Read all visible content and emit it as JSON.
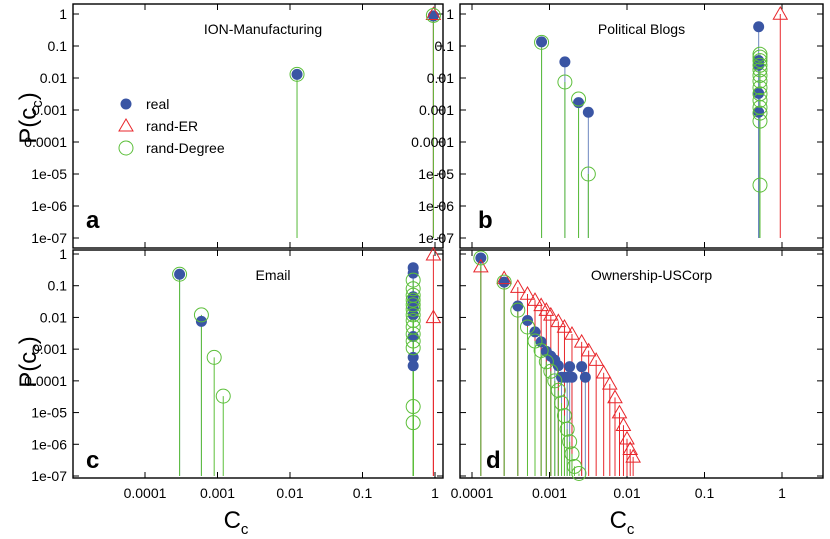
{
  "colors": {
    "real": "#3a55a4",
    "real_stem": "#6d87bf",
    "rand_er": "#e8262b",
    "rand_degree": "#5cbf3a",
    "axis": "#000000"
  },
  "ylabel": {
    "main": "P(c",
    "sub": "c",
    "close": ")"
  },
  "xlabel": {
    "main": "C",
    "sub": "c"
  },
  "legend": {
    "entries": [
      {
        "series": "real",
        "label": "real",
        "marker": "filled-circle"
      },
      {
        "series": "rand-ER",
        "label": "rand-ER",
        "marker": "open-triangle"
      },
      {
        "series": "rand-Degree",
        "label": "rand-Degree",
        "marker": "open-circle"
      }
    ],
    "placement": "panel-a-left"
  },
  "chart_data": [
    {
      "type": "scatter",
      "panel": "a",
      "title": "ION-Manufacturing",
      "xscale": "log",
      "yscale": "log",
      "xlim": [
        0.0001,
        1.2
      ],
      "ylim": [
        1e-07,
        1.4
      ],
      "xticks": [
        "0.0001",
        "0.001",
        "0.01",
        "0.1",
        "1"
      ],
      "yticks": [
        "1e-07",
        "1e-06",
        "1e-05",
        "0.0001",
        "0.001",
        "0.01",
        "0.1",
        "1"
      ],
      "series": [
        {
          "name": "real",
          "points": [
            [
              0.0125,
              0.013
            ],
            [
              0.95,
              0.87
            ]
          ]
        },
        {
          "name": "rand-ER",
          "points": [
            [
              0.95,
              0.98
            ]
          ]
        },
        {
          "name": "rand-Degree",
          "points": [
            [
              0.0125,
              0.013
            ],
            [
              0.95,
              0.9
            ]
          ]
        }
      ]
    },
    {
      "type": "scatter",
      "panel": "b",
      "title": "Political Blogs",
      "xscale": "log",
      "yscale": "log",
      "xlim": [
        0.0001,
        1.2
      ],
      "ylim": [
        1e-07,
        1.4
      ],
      "xticks": [
        "0.0001",
        "0.001",
        "0.01",
        "0.1",
        "1"
      ],
      "yticks": [
        "1e-07",
        "1e-06",
        "1e-05",
        "0.0001",
        "0.001",
        "0.01",
        "0.1",
        "1"
      ],
      "series": [
        {
          "name": "real",
          "points": [
            [
              0.00079,
              0.135
            ],
            [
              0.00158,
              0.032
            ],
            [
              0.00237,
              0.0017
            ],
            [
              0.00317,
              0.00085
            ],
            [
              0.5,
              0.4
            ],
            [
              0.5,
              0.035
            ],
            [
              0.5,
              0.025
            ],
            [
              0.5,
              0.0033
            ],
            [
              0.5,
              0.00085
            ]
          ]
        },
        {
          "name": "rand-ER",
          "points": [
            [
              0.95,
              1.0
            ]
          ]
        },
        {
          "name": "rand-Degree",
          "points": [
            [
              0.00079,
              0.13
            ],
            [
              0.00158,
              0.0075
            ],
            [
              0.00237,
              0.0022
            ],
            [
              0.00317,
              1e-05
            ],
            [
              0.52,
              0.055
            ],
            [
              0.52,
              0.045
            ],
            [
              0.52,
              0.035
            ],
            [
              0.52,
              0.025
            ],
            [
              0.52,
              0.018
            ],
            [
              0.52,
              0.012
            ],
            [
              0.52,
              0.008
            ],
            [
              0.52,
              0.005
            ],
            [
              0.52,
              0.0032
            ],
            [
              0.52,
              0.002
            ],
            [
              0.52,
              0.0012
            ],
            [
              0.52,
              0.0008
            ],
            [
              0.52,
              0.00045
            ],
            [
              0.52,
              4.5e-06
            ]
          ]
        }
      ]
    },
    {
      "type": "scatter",
      "panel": "c",
      "title": "Email",
      "xscale": "log",
      "yscale": "log",
      "xlim": [
        0.0001,
        1.2
      ],
      "ylim": [
        1e-07,
        1.4
      ],
      "xticks": [
        "0.0001",
        "0.001",
        "0.01",
        "0.1",
        "1"
      ],
      "yticks": [
        "1e-07",
        "1e-06",
        "1e-05",
        "0.0001",
        "0.001",
        "0.01",
        "0.1",
        "1"
      ],
      "series": [
        {
          "name": "real",
          "points": [
            [
              0.0003,
              0.23
            ],
            [
              0.0006,
              0.0075
            ],
            [
              0.5,
              0.37
            ],
            [
              0.5,
              0.25
            ],
            [
              0.5,
              0.045
            ],
            [
              0.5,
              0.03
            ],
            [
              0.5,
              0.02
            ],
            [
              0.5,
              0.012
            ],
            [
              0.5,
              0.0025
            ],
            [
              0.5,
              0.00055
            ],
            [
              0.5,
              0.0003
            ]
          ]
        },
        {
          "name": "rand-ER",
          "points": [
            [
              0.95,
              0.95
            ],
            [
              0.95,
              0.01
            ]
          ]
        },
        {
          "name": "rand-Degree",
          "points": [
            [
              0.0003,
              0.23
            ],
            [
              0.0006,
              0.012
            ],
            [
              0.0009,
              0.00055
            ],
            [
              0.0012,
              3.3e-05
            ],
            [
              0.5,
              0.15
            ],
            [
              0.5,
              0.08
            ],
            [
              0.5,
              0.05
            ],
            [
              0.5,
              0.035
            ],
            [
              0.5,
              0.025
            ],
            [
              0.5,
              0.018
            ],
            [
              0.5,
              0.012
            ],
            [
              0.5,
              0.008
            ],
            [
              0.5,
              0.005
            ],
            [
              0.5,
              0.003
            ],
            [
              0.5,
              0.0018
            ],
            [
              0.5,
              0.0011
            ],
            [
              0.5,
              1.55e-05
            ],
            [
              0.5,
              4.8e-06
            ]
          ]
        }
      ]
    },
    {
      "type": "scatter",
      "panel": "d",
      "title": "Ownership-USCorp",
      "xscale": "log",
      "yscale": "log",
      "xlim": [
        0.0001,
        1.2
      ],
      "ylim": [
        1e-07,
        1.4
      ],
      "xticks": [
        "0.0001",
        "0.001",
        "0.01",
        "0.1",
        "1"
      ],
      "yticks": [],
      "series": [
        {
          "name": "real",
          "points": [
            [
              0.00013,
              0.75
            ],
            [
              0.00026,
              0.13
            ],
            [
              0.00039,
              0.023
            ],
            [
              0.00052,
              0.008
            ],
            [
              0.00065,
              0.0035
            ],
            [
              0.00078,
              0.0017
            ],
            [
              0.00091,
              0.00085
            ],
            [
              0.00104,
              0.0006
            ],
            [
              0.00117,
              0.00045
            ],
            [
              0.0013,
              0.0003
            ],
            [
              0.00143,
              0.00013
            ],
            [
              0.00156,
              0.00013
            ],
            [
              0.00169,
              0.00013
            ],
            [
              0.00182,
              0.00028
            ],
            [
              0.00195,
              0.00013
            ],
            [
              0.0026,
              0.00028
            ],
            [
              0.0029,
              0.00013
            ]
          ]
        },
        {
          "name": "rand-ER",
          "points": [
            [
              0.00013,
              0.4
            ],
            [
              0.00026,
              0.17
            ],
            [
              0.00039,
              0.09
            ],
            [
              0.00052,
              0.055
            ],
            [
              0.00065,
              0.035
            ],
            [
              0.00078,
              0.024
            ],
            [
              0.00091,
              0.017
            ],
            [
              0.00104,
              0.012
            ],
            [
              0.0013,
              0.0075
            ],
            [
              0.00156,
              0.005
            ],
            [
              0.00195,
              0.003
            ],
            [
              0.0026,
              0.0017
            ],
            [
              0.0032,
              0.0009
            ],
            [
              0.004,
              0.00045
            ],
            [
              0.005,
              0.00018
            ],
            [
              0.006,
              8e-05
            ],
            [
              0.007,
              3e-05
            ],
            [
              0.008,
              1e-05
            ],
            [
              0.009,
              4e-06
            ],
            [
              0.01,
              1.5e-06
            ],
            [
              0.011,
              7e-07
            ],
            [
              0.012,
              4e-07
            ]
          ]
        },
        {
          "name": "rand-Degree",
          "points": [
            [
              0.00013,
              0.75
            ],
            [
              0.00026,
              0.13
            ],
            [
              0.00039,
              0.017
            ],
            [
              0.00052,
              0.005
            ],
            [
              0.00065,
              0.0018
            ],
            [
              0.00078,
              0.0009
            ],
            [
              0.00091,
              0.0004
            ],
            [
              0.00104,
              0.0002
            ],
            [
              0.00117,
              0.0001
            ],
            [
              0.0013,
              5e-05
            ],
            [
              0.00143,
              2e-05
            ],
            [
              0.00156,
              8e-06
            ],
            [
              0.00169,
              3e-06
            ],
            [
              0.00182,
              1.2e-06
            ],
            [
              0.00195,
              5e-07
            ],
            [
              0.0021,
              2e-07
            ],
            [
              0.0024,
              1.2e-07
            ]
          ]
        }
      ]
    }
  ]
}
